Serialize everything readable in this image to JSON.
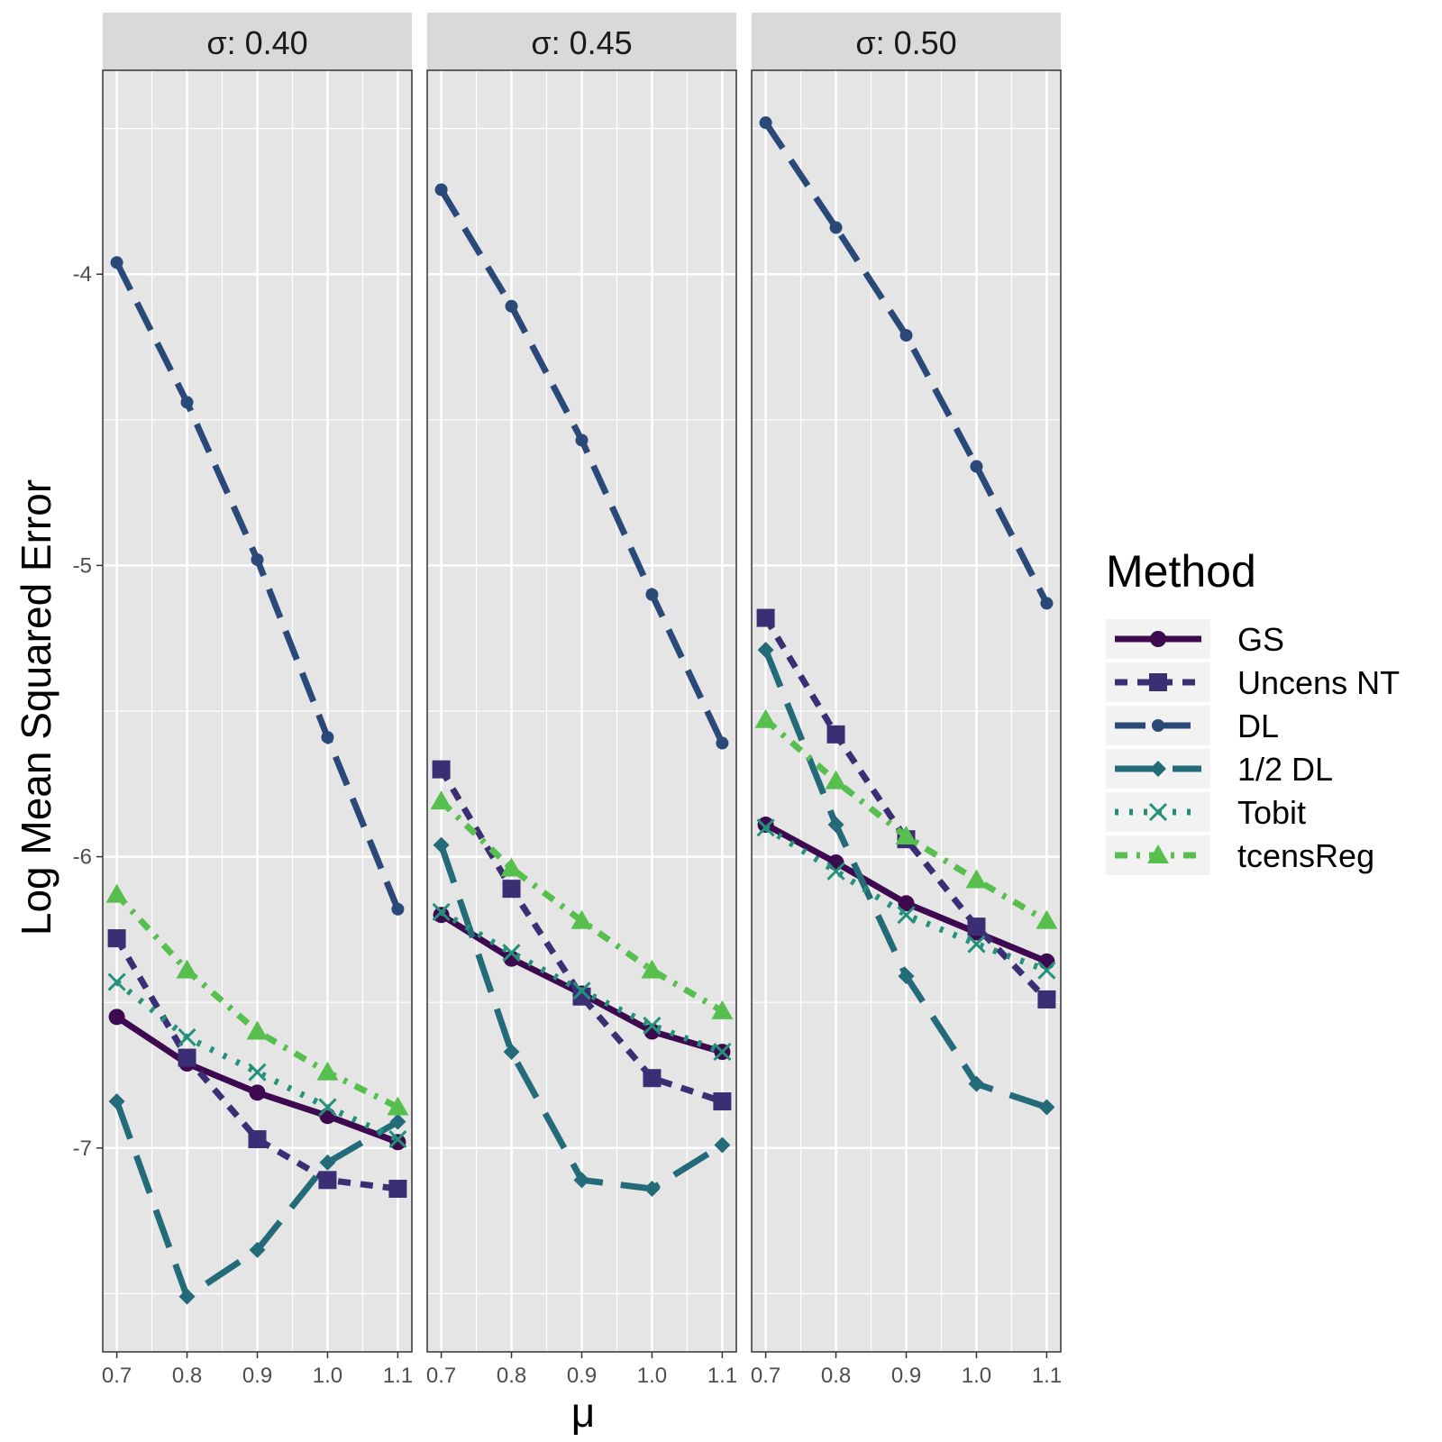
{
  "chart_data": {
    "type": "line",
    "ylabel": "Log Mean Squared Error",
    "xlabel": "μ",
    "x": [
      0.7,
      0.8,
      0.9,
      1.0,
      1.1
    ],
    "x_tick_labels": [
      "0.7",
      "0.8",
      "0.9",
      "1.0",
      "1.1"
    ],
    "xlim": [
      0.68,
      1.12
    ],
    "ylim": [
      -7.7,
      -3.3
    ],
    "y_ticks": [
      -4,
      -5,
      -6,
      -7
    ],
    "y_tick_labels": [
      "-4",
      "-5",
      "-6",
      "-7"
    ],
    "grid": true,
    "legend": {
      "title": "Method",
      "position": "right"
    },
    "panels": [
      {
        "label": "σ: 0.40",
        "series": [
          {
            "name": "GS",
            "values": [
              -6.55,
              -6.71,
              -6.81,
              -6.89,
              -6.98
            ]
          },
          {
            "name": "Uncens NT",
            "values": [
              -6.28,
              -6.69,
              -6.97,
              -7.11,
              -7.14
            ]
          },
          {
            "name": "DL",
            "values": [
              -3.96,
              -4.44,
              -4.98,
              -5.59,
              -6.18
            ]
          },
          {
            "name": "1/2 DL",
            "values": [
              -6.84,
              -7.51,
              -7.35,
              -7.05,
              -6.91
            ]
          },
          {
            "name": "Tobit",
            "values": [
              -6.43,
              -6.62,
              -6.74,
              -6.86,
              -6.97
            ]
          },
          {
            "name": "tcensReg",
            "values": [
              -6.13,
              -6.39,
              -6.6,
              -6.74,
              -6.86
            ]
          }
        ]
      },
      {
        "label": "σ: 0.45",
        "series": [
          {
            "name": "GS",
            "values": [
              -6.2,
              -6.35,
              -6.47,
              -6.6,
              -6.67
            ]
          },
          {
            "name": "Uncens NT",
            "values": [
              -5.7,
              -6.11,
              -6.48,
              -6.76,
              -6.84
            ]
          },
          {
            "name": "DL",
            "values": [
              -3.71,
              -4.11,
              -4.57,
              -5.1,
              -5.61
            ]
          },
          {
            "name": "1/2 DL",
            "values": [
              -5.96,
              -6.67,
              -7.11,
              -7.14,
              -6.99
            ]
          },
          {
            "name": "Tobit",
            "values": [
              -6.19,
              -6.33,
              -6.46,
              -6.58,
              -6.67
            ]
          },
          {
            "name": "tcensReg",
            "values": [
              -5.81,
              -6.04,
              -6.22,
              -6.39,
              -6.53
            ]
          }
        ]
      },
      {
        "label": "σ: 0.50",
        "series": [
          {
            "name": "GS",
            "values": [
              -5.89,
              -6.02,
              -6.16,
              -6.26,
              -6.36
            ]
          },
          {
            "name": "Uncens NT",
            "values": [
              -5.18,
              -5.58,
              -5.94,
              -6.24,
              -6.49
            ]
          },
          {
            "name": "DL",
            "values": [
              -3.48,
              -3.84,
              -4.21,
              -4.66,
              -5.13
            ]
          },
          {
            "name": "1/2 DL",
            "values": [
              -5.29,
              -5.89,
              -6.41,
              -6.78,
              -6.86
            ]
          },
          {
            "name": "Tobit",
            "values": [
              -5.9,
              -6.05,
              -6.2,
              -6.3,
              -6.39
            ]
          },
          {
            "name": "tcensReg",
            "values": [
              -5.53,
              -5.74,
              -5.93,
              -6.08,
              -6.22
            ]
          }
        ]
      }
    ]
  },
  "styles": {
    "GS": {
      "color": "#3d0a4f",
      "dash": "",
      "marker": "circle"
    },
    "Uncens NT": {
      "color": "#3b2e75",
      "dash": "14 11",
      "marker": "square"
    },
    "DL": {
      "color": "#2b4978",
      "dash": "34 16",
      "marker": "smallcircle"
    },
    "1/2 DL": {
      "color": "#236b79",
      "dash": "44 20",
      "marker": "diamond"
    },
    "Tobit": {
      "color": "#24917a",
      "dash": "4 12",
      "marker": "cross"
    },
    "tcensReg": {
      "color": "#56bf4e",
      "dash": "14 10 4 10",
      "marker": "triangle"
    }
  },
  "theme": {
    "panel_background": "#e5e5e5",
    "strip_background": "#d9d9d9",
    "grid_color": "#ffffff"
  }
}
